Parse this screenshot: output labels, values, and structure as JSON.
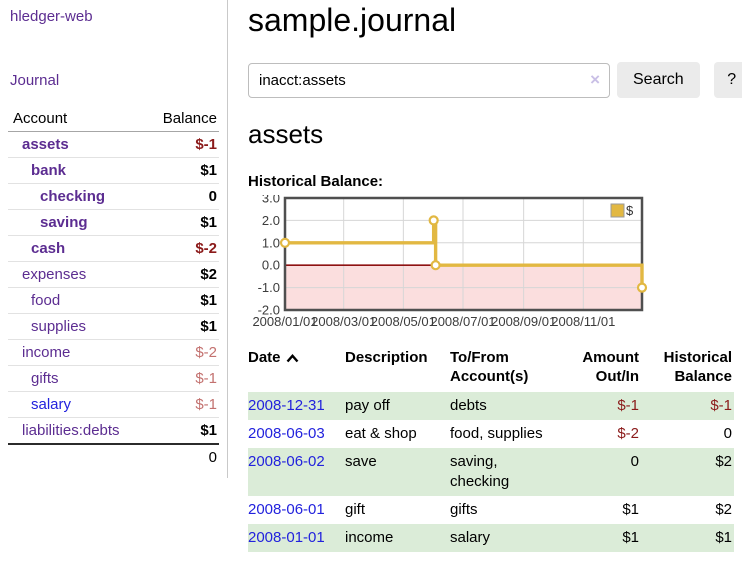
{
  "brand": "hledger-web",
  "nav": {
    "journal_label": "Journal"
  },
  "sidebar": {
    "columns": {
      "account": "Account",
      "balance": "Balance"
    },
    "accounts": [
      {
        "name": "assets",
        "depth": 0,
        "bold": true,
        "link_color": "purple",
        "balance": "$-1",
        "balance_style": "negative-strong"
      },
      {
        "name": "bank",
        "depth": 1,
        "bold": true,
        "link_color": "purple",
        "balance": "$1",
        "balance_style": "positive"
      },
      {
        "name": "checking",
        "depth": 2,
        "bold": true,
        "link_color": "purple",
        "balance": "0",
        "balance_style": "positive"
      },
      {
        "name": "saving",
        "depth": 2,
        "bold": true,
        "link_color": "purple",
        "balance": "$1",
        "balance_style": "positive"
      },
      {
        "name": "cash",
        "depth": 1,
        "bold": true,
        "link_color": "purple",
        "balance": "$-2",
        "balance_style": "negative-strong"
      },
      {
        "name": "expenses",
        "depth": 0,
        "bold": false,
        "link_color": "purple",
        "balance": "$2",
        "balance_style": "positive"
      },
      {
        "name": "food",
        "depth": 1,
        "bold": false,
        "link_color": "purple",
        "balance": "$1",
        "balance_style": "positive"
      },
      {
        "name": "supplies",
        "depth": 1,
        "bold": false,
        "link_color": "purple",
        "balance": "$1",
        "balance_style": "positive"
      },
      {
        "name": "income",
        "depth": 0,
        "bold": false,
        "link_color": "purple",
        "balance": "$-2",
        "balance_style": "negative-faded"
      },
      {
        "name": "gifts",
        "depth": 1,
        "bold": false,
        "link_color": "purple",
        "balance": "$-1",
        "balance_style": "negative-faded"
      },
      {
        "name": "salary",
        "depth": 1,
        "bold": false,
        "link_color": "blue",
        "balance": "$-1",
        "balance_style": "negative-faded"
      },
      {
        "name": "liabilities:debts",
        "depth": 0,
        "bold": false,
        "link_color": "purple",
        "balance": "$1",
        "balance_style": "positive"
      }
    ],
    "total": "0"
  },
  "header": {
    "title": "sample.journal"
  },
  "search": {
    "value": "inacct:assets",
    "clear_icon": "×",
    "button_label": "Search",
    "help_label": "?"
  },
  "account_page": {
    "title": "assets",
    "chart_label": "Historical Balance:"
  },
  "chart_data": {
    "type": "line",
    "style": "step-after",
    "title": "Historical Balance",
    "x_range": [
      "2008/01/01",
      "2008/12/31"
    ],
    "ylim": [
      -2,
      3
    ],
    "yticks": [
      3.0,
      2.0,
      1.0,
      0.0,
      -1.0,
      -2.0
    ],
    "xticks": [
      "2008/01/01",
      "2008/03/01",
      "2008/05/01",
      "2008/07/01",
      "2008/09/01",
      "2008/11/01"
    ],
    "grid": true,
    "legend": {
      "label": "$",
      "position": "top-right"
    },
    "series": [
      {
        "name": "$",
        "color": "#e2b842",
        "marker": "open-circle",
        "points": [
          {
            "date": "2008/01/01",
            "value": 1
          },
          {
            "date": "2008/06/01",
            "value": 2
          },
          {
            "date": "2008/06/03",
            "value": 0
          },
          {
            "date": "2008/12/31",
            "value": -1
          }
        ]
      }
    ],
    "negative_region_color": "#fbdede",
    "zero_line_color": "#8e1111",
    "grid_color": "#d6d6d6",
    "border_color": "#4f4f4f",
    "tick_label_color": "#3c3c3c"
  },
  "register": {
    "columns": [
      {
        "label": "Date",
        "align": "left",
        "sorted": "ascending"
      },
      {
        "label": "Description",
        "align": "left"
      },
      {
        "label": "To/From Account(s)",
        "align": "left"
      },
      {
        "label": "Amount Out/In",
        "align": "right"
      },
      {
        "label": "Historical Balance",
        "align": "right"
      }
    ],
    "rows": [
      {
        "date": "2008-12-31",
        "description": "pay off",
        "accounts": "debts",
        "amount": "$-1",
        "amount_style": "negative-strong",
        "balance": "$-1",
        "balance_style": "negative-strong"
      },
      {
        "date": "2008-06-03",
        "description": "eat & shop",
        "accounts": "food, supplies",
        "amount": "$-2",
        "amount_style": "negative-strong",
        "balance": "0",
        "balance_style": "positive"
      },
      {
        "date": "2008-06-02",
        "description": "save",
        "accounts": "saving, checking",
        "amount": "0",
        "amount_style": "positive",
        "balance": "$2",
        "balance_style": "positive"
      },
      {
        "date": "2008-06-01",
        "description": "gift",
        "accounts": "gifts",
        "amount": "$1",
        "amount_style": "positive",
        "balance": "$2",
        "balance_style": "positive"
      },
      {
        "date": "2008-01-01",
        "description": "income",
        "accounts": "salary",
        "amount": "$1",
        "amount_style": "positive",
        "balance": "$1",
        "balance_style": "positive"
      }
    ]
  }
}
